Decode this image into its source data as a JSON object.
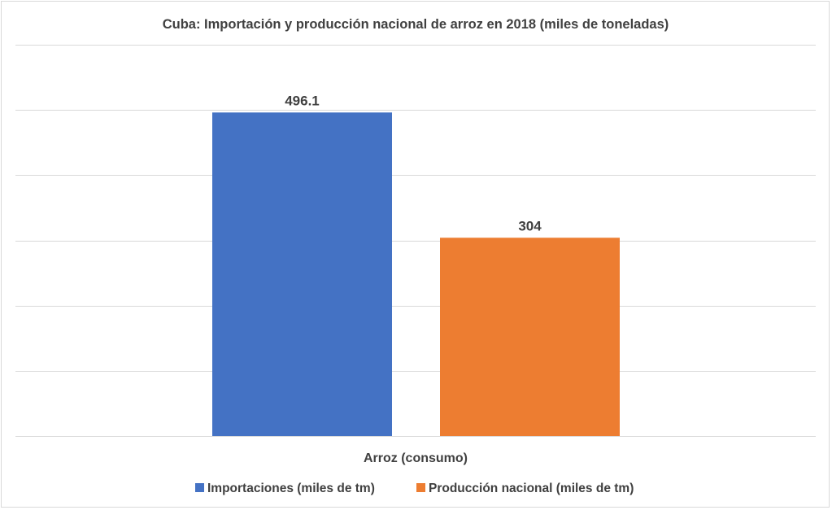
{
  "chart_data": {
    "type": "bar",
    "title": "Cuba: Importación y producción nacional de arroz en 2018 (miles de toneladas)",
    "categories": [
      "Arroz (consumo)"
    ],
    "series": [
      {
        "name": "Importaciones (miles de tm)",
        "values": [
          496.1
        ],
        "label": "496.1",
        "color": "#4472c4"
      },
      {
        "name": "Producción nacional (miles de tm)",
        "values": [
          304
        ],
        "label": "304",
        "color": "#ed7d31"
      }
    ],
    "xlabel": "",
    "ylabel": "",
    "ylim": [
      0,
      600
    ],
    "grid": true,
    "legend": "bottom"
  }
}
